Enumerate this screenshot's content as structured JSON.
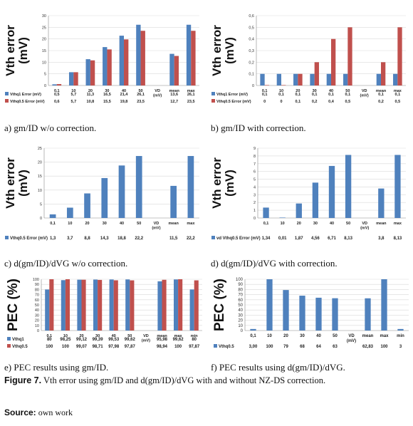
{
  "colors": {
    "blue": "#4f81bd",
    "red": "#c0504d",
    "grid": "#d9d9d9",
    "axis": "#888888"
  },
  "captions": {
    "a": "a) gm/ID w/o correction.",
    "b": "b) gm/ID with correction.",
    "c": "c) d(gm/ID)/dVG w/o correction.",
    "d": "d) d(gm/ID)/dVG with correction.",
    "e": "e) PEC results using gm/ID.",
    "f": "f) PEC results using d(gm/ID)/dVG."
  },
  "figure_caption": {
    "label": "Figure 7.",
    "text": " Vth error using gm/ID and d(gm/ID)/dVG with and without NZ-DS correction."
  },
  "source": {
    "label": "Source:",
    "text": " own work"
  },
  "chart_data": [
    {
      "id": "a",
      "type": "bar",
      "ylabel_lines": [
        "Vth error",
        "(mV)"
      ],
      "ylim": [
        0,
        30
      ],
      "yticks": [
        0,
        5,
        10,
        15,
        20,
        25,
        30
      ],
      "categories": [
        "0,1",
        "10",
        "20",
        "30",
        "40",
        "50",
        "VD (mV)",
        "mean",
        "max"
      ],
      "series": [
        {
          "name": "Vthq1 Error (mV)",
          "color": "blue",
          "values": [
            0.5,
            5.7,
            11.3,
            16.5,
            21.4,
            26.1,
            null,
            13.6,
            26.1
          ],
          "labels": [
            "0,5",
            "5,7",
            "11,3",
            "16,5",
            "21,4",
            "26,1",
            "",
            "13,6",
            "26,1"
          ]
        },
        {
          "name": "Vthq0.5 Error (mV)",
          "color": "red",
          "values": [
            0.6,
            5.7,
            10.8,
            15.5,
            19.8,
            23.5,
            null,
            12.7,
            23.5
          ],
          "labels": [
            "0,6",
            "5,7",
            "10,8",
            "15,5",
            "19,8",
            "23,5",
            "",
            "12,7",
            "23,5"
          ]
        }
      ]
    },
    {
      "id": "b",
      "type": "bar",
      "ylabel_lines": [
        "Vth error",
        "(mV)"
      ],
      "ylim": [
        0,
        0.6
      ],
      "yticks": [
        0,
        0.1,
        0.2,
        0.3,
        0.4,
        0.5,
        0.6
      ],
      "yticklabels": [
        "0",
        "0,1",
        "0,2",
        "0,3",
        "0,4",
        "0,5",
        "0,6"
      ],
      "categories": [
        "0,1",
        "10",
        "20",
        "30",
        "40",
        "50",
        "VD (mV)",
        "mean",
        "max"
      ],
      "series": [
        {
          "name": "Vthq1 Error (mV)",
          "color": "blue",
          "values": [
            0.1,
            0.1,
            0.1,
            0.1,
            0.1,
            0.1,
            null,
            0.1,
            0.1
          ],
          "labels": [
            "0,1",
            "0,1",
            "0,1",
            "0,1",
            "0,1",
            "0,1",
            "",
            "0,1",
            "0,1"
          ]
        },
        {
          "name": "Vthq0.5 Error (mV)",
          "color": "red",
          "values": [
            0,
            0,
            0.1,
            0.2,
            0.4,
            0.5,
            null,
            0.2,
            0.5
          ],
          "labels": [
            "0",
            "0",
            "0,1",
            "0,2",
            "0,4",
            "0,5",
            "",
            "0,2",
            "0,5"
          ]
        }
      ]
    },
    {
      "id": "c",
      "type": "bar",
      "ylabel_lines": [
        "Vth error",
        "(mV)"
      ],
      "ylim": [
        0,
        25
      ],
      "yticks": [
        0,
        5,
        10,
        15,
        20,
        25
      ],
      "categories": [
        "0,1",
        "10",
        "20",
        "30",
        "40",
        "50",
        "VD (mV)",
        "mean",
        "max"
      ],
      "series": [
        {
          "name": "Vthq0.5 Error (mV)",
          "color": "blue",
          "values": [
            1.3,
            3.7,
            8.8,
            14.3,
            18.8,
            22.2,
            null,
            11.5,
            22.2
          ],
          "labels": [
            "1,3",
            "3,7",
            "8,8",
            "14,3",
            "18,8",
            "22,2",
            "",
            "11,5",
            "22,2"
          ]
        }
      ]
    },
    {
      "id": "d",
      "type": "bar",
      "ylabel_lines": [
        "Vth error",
        "(mV)"
      ],
      "ylim": [
        0,
        9
      ],
      "yticks": [
        0,
        1,
        2,
        3,
        4,
        5,
        6,
        7,
        8,
        9
      ],
      "categories": [
        "0,1",
        "10",
        "20",
        "30",
        "40",
        "50",
        "VD (mV)",
        "mean",
        "max"
      ],
      "series": [
        {
          "name": "vd Vthq0.5 Error (mV)",
          "color": "blue",
          "values": [
            1.34,
            0.01,
            1.87,
            4.56,
            6.71,
            8.13,
            null,
            3.8,
            8.13
          ],
          "labels": [
            "1,34",
            "0,01",
            "1,87",
            "4,56",
            "6,71",
            "8,13",
            "",
            "3,8",
            "8,13"
          ]
        }
      ]
    },
    {
      "id": "e",
      "type": "bar",
      "ylabel_lines": [
        "PEC (%)"
      ],
      "ylim": [
        0,
        100
      ],
      "yticks": [
        0,
        10,
        20,
        30,
        40,
        50,
        60,
        70,
        80,
        90,
        100
      ],
      "categories": [
        "0,1",
        "10",
        "20",
        "30",
        "40",
        "50",
        "VD (mV)",
        "mean",
        "max",
        "min"
      ],
      "series": [
        {
          "name": "Vthq1",
          "color": "blue",
          "values": [
            80,
            98.25,
            99.12,
            99.39,
            99.53,
            99.62,
            null,
            95.98,
            99.62,
            80
          ],
          "labels": [
            "80",
            "98,25",
            "99,12",
            "99,39",
            "99,53",
            "99,62",
            "",
            "95,98",
            "99,62",
            "80"
          ]
        },
        {
          "name": "Vthq0.5",
          "color": "red",
          "values": [
            100,
            100,
            99.07,
            98.71,
            97.98,
            97.87,
            null,
            98.94,
            100,
            97.87
          ],
          "labels": [
            "100",
            "100",
            "99,07",
            "98,71",
            "97,98",
            "97,87",
            "",
            "98,94",
            "100",
            "97,87"
          ]
        }
      ]
    },
    {
      "id": "f",
      "type": "bar",
      "ylabel_lines": [
        "PEC (%)"
      ],
      "ylim": [
        0,
        100
      ],
      "yticks": [
        0,
        10,
        20,
        30,
        40,
        50,
        60,
        70,
        80,
        90,
        100
      ],
      "categories": [
        "0,1",
        "10",
        "20",
        "30",
        "40",
        "50",
        "VD (mV)",
        "mean",
        "max",
        "min"
      ],
      "series": [
        {
          "name": "Vthq0.5",
          "color": "blue",
          "values": [
            3,
            100,
            79,
            68,
            64,
            63,
            null,
            62.83,
            100,
            3
          ],
          "labels": [
            "3,00",
            "100",
            "79",
            "68",
            "64",
            "63",
            "",
            "62,83",
            "100",
            "3"
          ]
        }
      ]
    }
  ]
}
